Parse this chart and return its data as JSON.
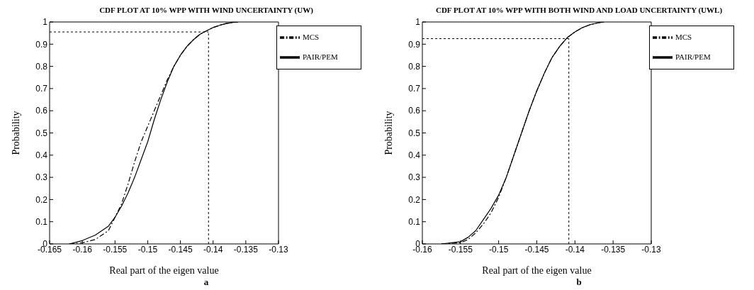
{
  "chart_data": [
    {
      "type": "line",
      "title": "CDF PLOT AT 10% WPP WITH WIND UNCERTAINTY (UW)",
      "xlabel": "Real part of the eigen value",
      "ylabel": "Probability",
      "annotations": [
        "a"
      ],
      "xlim": [
        -0.165,
        -0.13
      ],
      "xticks": [
        -0.165,
        -0.16,
        -0.155,
        -0.15,
        -0.145,
        -0.14,
        -0.135,
        -0.13
      ],
      "ylim": [
        0,
        1
      ],
      "yticks": [
        0,
        0.1,
        0.2,
        0.3,
        0.4,
        0.5,
        0.6,
        0.7,
        0.8,
        0.9,
        1
      ],
      "grid": false,
      "legend": "top right",
      "series": [
        {
          "name": "MCS",
          "color": "#000000",
          "line_style": "dashed",
          "x": [
            -0.162,
            -0.16,
            -0.158,
            -0.156,
            -0.155,
            -0.154,
            -0.153,
            -0.152,
            -0.151,
            -0.15,
            -0.149,
            -0.148,
            -0.147,
            -0.146,
            -0.145,
            -0.144,
            -0.143,
            -0.142,
            -0.141,
            -0.14,
            -0.139,
            -0.138,
            -0.137,
            -0.1362
          ],
          "values": [
            0,
            0.005,
            0.02,
            0.06,
            0.12,
            0.18,
            0.27,
            0.37,
            0.46,
            0.53,
            0.6,
            0.67,
            0.74,
            0.8,
            0.85,
            0.89,
            0.92,
            0.945,
            0.96,
            0.975,
            0.985,
            0.993,
            0.998,
            1
          ]
        },
        {
          "name": "PAIR/PEM",
          "color": "#000000",
          "line_style": "solid",
          "x": [
            -0.162,
            -0.16,
            -0.158,
            -0.156,
            -0.155,
            -0.154,
            -0.153,
            -0.152,
            -0.151,
            -0.15,
            -0.149,
            -0.148,
            -0.147,
            -0.146,
            -0.145,
            -0.144,
            -0.143,
            -0.142,
            -0.141,
            -0.14,
            -0.139,
            -0.138,
            -0.137,
            -0.1362
          ],
          "values": [
            0,
            0.015,
            0.04,
            0.08,
            0.12,
            0.17,
            0.23,
            0.3,
            0.38,
            0.46,
            0.56,
            0.65,
            0.73,
            0.8,
            0.85,
            0.89,
            0.92,
            0.945,
            0.96,
            0.975,
            0.985,
            0.993,
            0.998,
            1
          ]
        }
      ],
      "ref_lines": [
        {
          "axis": "y",
          "value": 0.955,
          "line_style": "dashed",
          "color": "#000000"
        },
        {
          "axis": "x",
          "value": -0.1407,
          "line_style": "dashed",
          "color": "#000000"
        }
      ]
    },
    {
      "type": "line",
      "title": "CDF PLOT AT 10% WPP WITH BOTH WIND AND LOAD UNCERTAINTY (UWL)",
      "xlabel": "Real part of the eigen value",
      "ylabel": "Probability",
      "annotations": [
        "b"
      ],
      "xlim": [
        -0.16,
        -0.13
      ],
      "xticks": [
        -0.16,
        -0.155,
        -0.15,
        -0.145,
        -0.14,
        -0.135,
        -0.13
      ],
      "ylim": [
        0,
        1
      ],
      "yticks": [
        0,
        0.1,
        0.2,
        0.3,
        0.4,
        0.5,
        0.6,
        0.7,
        0.8,
        0.9,
        1
      ],
      "grid": false,
      "legend": "top right",
      "series": [
        {
          "name": "MCS",
          "color": "#000000",
          "line_style": "dashed",
          "x": [
            -0.1575,
            -0.155,
            -0.154,
            -0.153,
            -0.152,
            -0.151,
            -0.15,
            -0.149,
            -0.148,
            -0.147,
            -0.146,
            -0.145,
            -0.144,
            -0.143,
            -0.142,
            -0.141,
            -0.14,
            -0.139,
            -0.138,
            -0.137,
            -0.1362
          ],
          "values": [
            0,
            0.005,
            0.02,
            0.05,
            0.09,
            0.14,
            0.21,
            0.3,
            0.4,
            0.5,
            0.6,
            0.69,
            0.77,
            0.84,
            0.89,
            0.93,
            0.955,
            0.975,
            0.988,
            0.996,
            1
          ]
        },
        {
          "name": "PAIR/PEM",
          "color": "#000000",
          "line_style": "solid",
          "x": [
            -0.1575,
            -0.155,
            -0.154,
            -0.153,
            -0.152,
            -0.151,
            -0.15,
            -0.149,
            -0.148,
            -0.147,
            -0.146,
            -0.145,
            -0.144,
            -0.143,
            -0.142,
            -0.141,
            -0.14,
            -0.139,
            -0.138,
            -0.137,
            -0.1362
          ],
          "values": [
            0,
            0.01,
            0.03,
            0.06,
            0.11,
            0.16,
            0.22,
            0.3,
            0.4,
            0.5,
            0.6,
            0.69,
            0.77,
            0.84,
            0.89,
            0.93,
            0.955,
            0.975,
            0.988,
            0.996,
            1
          ]
        }
      ],
      "ref_lines": [
        {
          "axis": "y",
          "value": 0.925,
          "line_style": "dashed",
          "color": "#000000"
        },
        {
          "axis": "x",
          "value": -0.1408,
          "line_style": "dashed",
          "color": "#000000"
        }
      ]
    }
  ]
}
